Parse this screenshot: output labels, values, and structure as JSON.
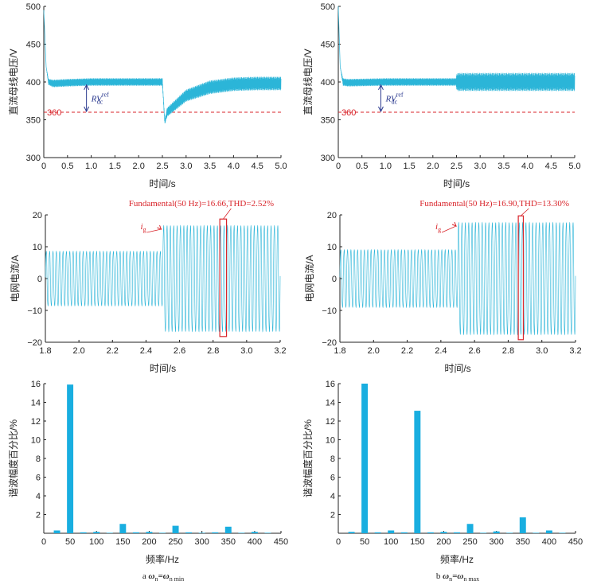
{
  "colors": {
    "signal": "#2bb5d8",
    "bar": "#19aee0",
    "ref_line": "#d9252b",
    "annotation_red": "#d9252b",
    "annotation_blue": "#2b3a8f",
    "axis": "#222222"
  },
  "captions": {
    "left": {
      "letter": "a",
      "text": "ω",
      "sub1": "n",
      "mid": "=ω",
      "sub2": "n min"
    },
    "right": {
      "letter": "b",
      "text": "ω",
      "sub1": "n",
      "mid": "=ω",
      "sub2": "n max"
    }
  },
  "chart_data": [
    {
      "id": "left-voltage",
      "type": "line",
      "xlabel": "时间/s",
      "ylabel": "直流母线电压/V",
      "xlim": [
        0,
        5
      ],
      "ylim": [
        300,
        500
      ],
      "xticks": [
        "0",
        "0.5",
        "1.0",
        "1.5",
        "2.0",
        "2.5",
        "3.0",
        "3.5",
        "4.0",
        "4.5",
        "5.0"
      ],
      "yticks": [
        "300",
        "350",
        "400",
        "450",
        "500"
      ],
      "ref_value": 360,
      "ref_label": "360",
      "annotation": {
        "text": "RV",
        "sup": "ref",
        "sub": "dc"
      },
      "x": [
        0.0,
        0.05,
        0.1,
        0.2,
        0.5,
        1.0,
        2.0,
        2.5,
        2.55,
        2.6,
        3.0,
        3.5,
        4.0,
        4.5,
        5.0
      ],
      "y": [
        495,
        420,
        400,
        398,
        399,
        400,
        400,
        400,
        347,
        360,
        382,
        393,
        397,
        398,
        398
      ],
      "ripple": [
        0,
        0,
        4,
        5,
        5,
        5,
        5,
        5,
        3,
        6,
        8,
        9,
        9,
        9,
        9
      ]
    },
    {
      "id": "right-voltage",
      "type": "line",
      "xlabel": "时间/s",
      "ylabel": "直流母线电压/V",
      "xlim": [
        0,
        5
      ],
      "ylim": [
        300,
        500
      ],
      "xticks": [
        "0",
        "0.5",
        "1.0",
        "1.5",
        "2.0",
        "2.5",
        "3.0",
        "3.5",
        "4.0",
        "4.5",
        "5.0"
      ],
      "yticks": [
        "300",
        "350",
        "400",
        "450",
        "500"
      ],
      "ref_value": 360,
      "ref_label": "360",
      "annotation": {
        "text": "RV",
        "sup": "ref",
        "sub": "dc"
      },
      "x": [
        0.0,
        0.04,
        0.1,
        0.2,
        1.0,
        2.49,
        2.51,
        3.0,
        4.0,
        5.0
      ],
      "y": [
        500,
        420,
        400,
        399,
        400,
        400,
        400,
        400,
        400,
        400
      ],
      "ripple": [
        0,
        0,
        5,
        5,
        5,
        5,
        12,
        12,
        12,
        12
      ]
    },
    {
      "id": "left-current",
      "type": "line",
      "xlabel": "时间/s",
      "ylabel": "电网电流/A",
      "xlim": [
        1.8,
        3.2
      ],
      "ylim": [
        -20,
        20
      ],
      "xticks": [
        "1.8",
        "2.0",
        "2.2",
        "2.4",
        "2.6",
        "2.8",
        "3.0",
        "3.2"
      ],
      "yticks": [
        "-20",
        "-10",
        "0",
        "10",
        "20"
      ],
      "frequency_hz": 50,
      "amplitude_before": 9,
      "amplitude_after": 17.5,
      "step_time": 2.5,
      "annotation": "Fundamental(50 Hz)=16.66,THD=2.52%",
      "signal_label": {
        "text": "i",
        "sub": "g"
      },
      "highlight_window": [
        2.84,
        2.88
      ]
    },
    {
      "id": "right-current",
      "type": "line",
      "xlabel": "时间/s",
      "ylabel": "电网电流/A",
      "xlim": [
        1.8,
        3.2
      ],
      "ylim": [
        -20,
        20
      ],
      "xticks": [
        "1.8",
        "2.0",
        "2.2",
        "2.4",
        "2.6",
        "2.8",
        "3.0",
        "3.2"
      ],
      "yticks": [
        "-20",
        "-10",
        "0",
        "10",
        "20"
      ],
      "frequency_hz": 50,
      "amplitude_before": 9.5,
      "amplitude_after": 18.5,
      "step_time": 2.5,
      "annotation": "Fundamental(50 Hz)=16.90,THD=13.30%",
      "signal_label": {
        "text": "i",
        "sub": "g"
      },
      "highlight_window": [
        2.86,
        2.89
      ]
    },
    {
      "id": "left-spectrum",
      "type": "bar",
      "xlabel": "频率/Hz",
      "ylabel": "谐波幅度百分比/%",
      "xlim": [
        0,
        450
      ],
      "ylim": [
        0,
        16
      ],
      "xticks": [
        "0",
        "50",
        "100",
        "150",
        "200",
        "250",
        "300",
        "350",
        "400",
        "450"
      ],
      "yticks": [
        "2",
        "4",
        "6",
        "8",
        "10",
        "12",
        "14",
        "16"
      ],
      "x": [
        25,
        50,
        75,
        100,
        125,
        150,
        175,
        200,
        225,
        250,
        275,
        300,
        325,
        350,
        375,
        400,
        425
      ],
      "values": [
        0.3,
        15.9,
        0.1,
        0.15,
        0.05,
        1.0,
        0.1,
        0.15,
        0.05,
        0.8,
        0.1,
        0.05,
        0.1,
        0.7,
        0.05,
        0.15,
        0.05
      ]
    },
    {
      "id": "right-spectrum",
      "type": "bar",
      "xlabel": "频率/Hz",
      "ylabel": "谐波幅度百分比/%",
      "xlim": [
        0,
        450
      ],
      "ylim": [
        0,
        16
      ],
      "xticks": [
        "0",
        "50",
        "100",
        "150",
        "200",
        "250",
        "300",
        "350",
        "400",
        "450"
      ],
      "yticks": [
        "2",
        "4",
        "6",
        "8",
        "10",
        "12",
        "14",
        "16"
      ],
      "x": [
        25,
        50,
        75,
        100,
        125,
        150,
        175,
        200,
        225,
        250,
        275,
        300,
        325,
        350,
        375,
        400,
        425
      ],
      "values": [
        0.15,
        16.0,
        0.1,
        0.3,
        0.1,
        13.1,
        0.1,
        0.15,
        0.1,
        1.0,
        0.05,
        0.2,
        0.05,
        1.7,
        0.05,
        0.3,
        0.05
      ]
    }
  ]
}
